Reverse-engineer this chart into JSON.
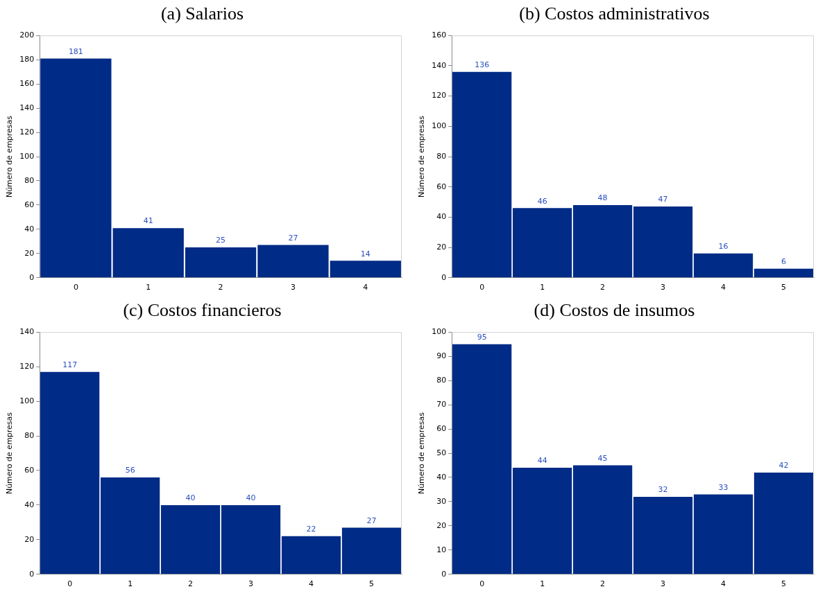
{
  "chart_data": [
    {
      "type": "bar",
      "title": "(a) Salarios",
      "ylabel": "Número de empresas",
      "categories": [
        "0",
        "1",
        "2",
        "3",
        "4"
      ],
      "values": [
        181,
        41,
        25,
        27,
        14
      ],
      "color": "#002b86",
      "ylim": [
        0,
        200
      ],
      "yticks": [
        0,
        20,
        40,
        60,
        80,
        100,
        120,
        140,
        160,
        180,
        200
      ],
      "data_labels": true
    },
    {
      "type": "bar",
      "title": "(b) Costos administrativos",
      "ylabel": "Número de empresas",
      "categories": [
        "0",
        "1",
        "2",
        "3",
        "4",
        "5"
      ],
      "values": [
        136,
        46,
        48,
        47,
        16,
        6
      ],
      "color": "#002b86",
      "ylim": [
        0,
        160
      ],
      "yticks": [
        0,
        20,
        40,
        60,
        80,
        100,
        120,
        140,
        160
      ],
      "data_labels": true
    },
    {
      "type": "bar",
      "title": "(c) Costos financieros",
      "ylabel": "Número de empresas",
      "categories": [
        "0",
        "1",
        "2",
        "3",
        "4",
        "5"
      ],
      "values": [
        117,
        56,
        40,
        40,
        22,
        27
      ],
      "color": "#002b86",
      "ylim": [
        0,
        140
      ],
      "yticks": [
        0,
        20,
        40,
        60,
        80,
        100,
        120,
        140
      ],
      "data_labels": true
    },
    {
      "type": "bar",
      "title": "(d) Costos de insumos",
      "ylabel": "Número de empresas",
      "categories": [
        "0",
        "1",
        "2",
        "3",
        "4",
        "5"
      ],
      "values": [
        95,
        44,
        45,
        32,
        33,
        42
      ],
      "color": "#002b86",
      "ylim": [
        0,
        100
      ],
      "yticks": [
        0,
        10,
        20,
        30,
        40,
        50,
        60,
        70,
        80,
        90,
        100
      ],
      "data_labels": true
    }
  ]
}
